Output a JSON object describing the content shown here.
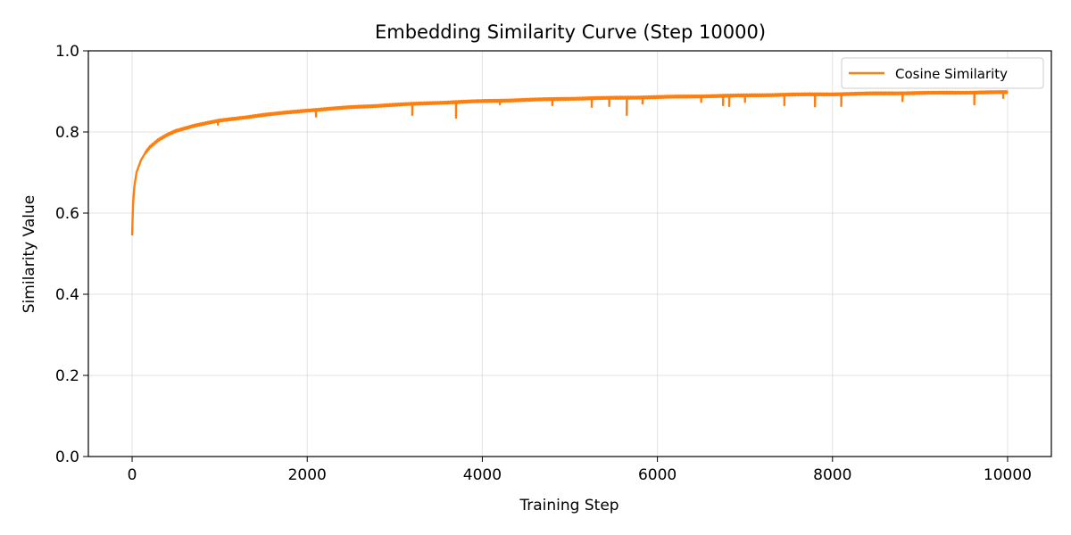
{
  "chart_data": {
    "type": "line",
    "title": "Embedding Similarity Curve (Step 10000)",
    "xlabel": "Training Step",
    "ylabel": "Similarity Value",
    "xlim": [
      -500,
      10500
    ],
    "ylim": [
      0.0,
      1.0
    ],
    "xticks": [
      0,
      2000,
      4000,
      6000,
      8000,
      10000
    ],
    "xtick_labels": [
      "0",
      "2000",
      "4000",
      "6000",
      "8000",
      "10000"
    ],
    "yticks": [
      0.0,
      0.2,
      0.4,
      0.6,
      0.8,
      1.0
    ],
    "ytick_labels": [
      "0.0",
      "0.2",
      "0.4",
      "0.6",
      "0.8",
      "1.0"
    ],
    "grid": true,
    "legend_position": "top-right",
    "series": [
      {
        "name": "Cosine Similarity",
        "color": "#ff7f0e",
        "x": [
          0,
          10,
          25,
          50,
          100,
          150,
          200,
          300,
          400,
          500,
          700,
          1000,
          1500,
          2000,
          2500,
          3000,
          3500,
          4000,
          4500,
          5000,
          5500,
          6000,
          6500,
          7000,
          7500,
          8000,
          8500,
          9000,
          9500,
          10000
        ],
        "y": [
          0.545,
          0.62,
          0.665,
          0.7,
          0.73,
          0.748,
          0.762,
          0.78,
          0.793,
          0.803,
          0.815,
          0.828,
          0.842,
          0.853,
          0.861,
          0.867,
          0.872,
          0.876,
          0.879,
          0.882,
          0.884,
          0.886,
          0.888,
          0.89,
          0.892,
          0.893,
          0.895,
          0.896,
          0.897,
          0.898
        ]
      }
    ],
    "dips": [
      {
        "x": 980,
        "y": 0.818
      },
      {
        "x": 2100,
        "y": 0.838
      },
      {
        "x": 3200,
        "y": 0.842
      },
      {
        "x": 3700,
        "y": 0.835
      },
      {
        "x": 4200,
        "y": 0.868
      },
      {
        "x": 4800,
        "y": 0.866
      },
      {
        "x": 5250,
        "y": 0.862
      },
      {
        "x": 5450,
        "y": 0.864
      },
      {
        "x": 5650,
        "y": 0.842
      },
      {
        "x": 5830,
        "y": 0.87
      },
      {
        "x": 6500,
        "y": 0.874
      },
      {
        "x": 6750,
        "y": 0.866
      },
      {
        "x": 6820,
        "y": 0.864
      },
      {
        "x": 7000,
        "y": 0.874
      },
      {
        "x": 7450,
        "y": 0.866
      },
      {
        "x": 7800,
        "y": 0.863
      },
      {
        "x": 8100,
        "y": 0.864
      },
      {
        "x": 8800,
        "y": 0.876
      },
      {
        "x": 9620,
        "y": 0.868
      },
      {
        "x": 9950,
        "y": 0.884
      }
    ]
  }
}
